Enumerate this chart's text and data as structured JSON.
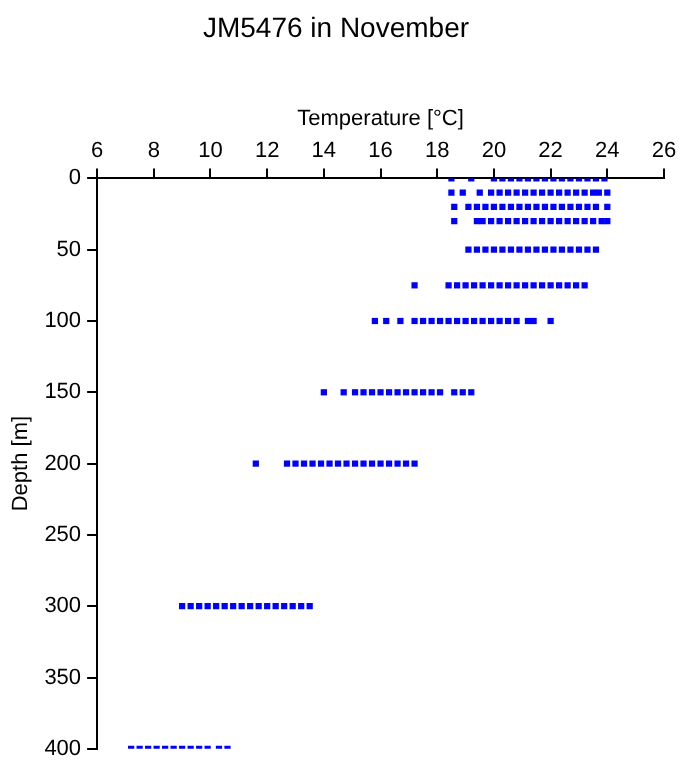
{
  "chart_data": {
    "type": "scatter",
    "title": "JM5476 in November",
    "xlabel": "Temperature [°C]",
    "ylabel": "Depth [m]",
    "xlim": [
      6,
      26
    ],
    "xticks": [
      6,
      8,
      10,
      12,
      14,
      16,
      18,
      20,
      22,
      24,
      26
    ],
    "ylim": [
      400,
      0
    ],
    "yticks": [
      0,
      50,
      100,
      150,
      200,
      250,
      300,
      350,
      400
    ],
    "grid": false,
    "legend": false,
    "marker": "square",
    "series": [
      {
        "color": "#0000ff",
        "x": [
          18.5,
          19.2,
          20.0,
          20.3,
          20.6,
          20.9,
          21.2,
          21.5,
          21.8,
          22.1,
          22.4,
          22.7,
          23.0,
          23.3,
          23.6,
          23.9
        ],
        "values": [
          0,
          0,
          0,
          0,
          0,
          0,
          0,
          0,
          0,
          0,
          0,
          0,
          0,
          0,
          0,
          0
        ]
      },
      {
        "color": "#0000ff",
        "x": [
          18.5,
          18.9,
          19.5,
          19.9,
          20.2,
          20.5,
          20.8,
          21.1,
          21.4,
          21.7,
          22.0,
          22.3,
          22.6,
          22.9,
          23.2,
          23.5,
          23.7,
          24.0
        ],
        "values": [
          10,
          10,
          10,
          10,
          10,
          10,
          10,
          10,
          10,
          10,
          10,
          10,
          10,
          10,
          10,
          10,
          10,
          10
        ]
      },
      {
        "color": "#0000ff",
        "x": [
          18.6,
          19.1,
          19.4,
          19.7,
          20.0,
          20.3,
          20.6,
          20.9,
          21.2,
          21.5,
          21.8,
          22.1,
          22.4,
          22.7,
          23.0,
          23.3,
          23.6,
          24.0
        ],
        "values": [
          20,
          20,
          20,
          20,
          20,
          20,
          20,
          20,
          20,
          20,
          20,
          20,
          20,
          20,
          20,
          20,
          20,
          20
        ]
      },
      {
        "color": "#0000ff",
        "x": [
          18.6,
          19.4,
          19.6,
          19.9,
          20.2,
          20.5,
          20.8,
          21.1,
          21.4,
          21.7,
          22.0,
          22.3,
          22.6,
          22.9,
          23.2,
          23.5,
          23.8,
          24.0
        ],
        "values": [
          30,
          30,
          30,
          30,
          30,
          30,
          30,
          30,
          30,
          30,
          30,
          30,
          30,
          30,
          30,
          30,
          30,
          30
        ]
      },
      {
        "color": "#0000ff",
        "x": [
          19.1,
          19.4,
          19.7,
          20.0,
          20.3,
          20.6,
          20.9,
          21.2,
          21.5,
          21.8,
          22.1,
          22.4,
          22.7,
          23.0,
          23.3,
          23.6
        ],
        "values": [
          50,
          50,
          50,
          50,
          50,
          50,
          50,
          50,
          50,
          50,
          50,
          50,
          50,
          50,
          50,
          50
        ]
      },
      {
        "color": "#0000ff",
        "x": [
          17.2,
          18.4,
          18.7,
          19.0,
          19.3,
          19.6,
          19.9,
          20.2,
          20.5,
          20.8,
          21.1,
          21.4,
          21.7,
          22.0,
          22.3,
          22.6,
          22.9,
          23.2
        ],
        "values": [
          75,
          75,
          75,
          75,
          75,
          75,
          75,
          75,
          75,
          75,
          75,
          75,
          75,
          75,
          75,
          75,
          75,
          75
        ]
      },
      {
        "color": "#0000ff",
        "x": [
          15.8,
          16.2,
          16.7,
          17.2,
          17.5,
          17.8,
          18.1,
          18.4,
          18.7,
          19.0,
          19.3,
          19.6,
          19.9,
          20.2,
          20.5,
          20.8,
          21.2,
          21.4,
          22.0
        ],
        "values": [
          100,
          100,
          100,
          100,
          100,
          100,
          100,
          100,
          100,
          100,
          100,
          100,
          100,
          100,
          100,
          100,
          100,
          100,
          100
        ]
      },
      {
        "color": "#0000ff",
        "x": [
          14.0,
          14.7,
          15.1,
          15.4,
          15.7,
          16.0,
          16.3,
          16.6,
          16.9,
          17.2,
          17.5,
          17.8,
          18.1,
          18.6,
          18.9,
          19.2
        ],
        "values": [
          150,
          150,
          150,
          150,
          150,
          150,
          150,
          150,
          150,
          150,
          150,
          150,
          150,
          150,
          150,
          150
        ]
      },
      {
        "color": "#0000ff",
        "x": [
          11.6,
          12.7,
          13.0,
          13.3,
          13.6,
          13.9,
          14.2,
          14.5,
          14.8,
          15.1,
          15.4,
          15.7,
          16.0,
          16.3,
          16.6,
          16.9,
          17.2
        ],
        "values": [
          200,
          200,
          200,
          200,
          200,
          200,
          200,
          200,
          200,
          200,
          200,
          200,
          200,
          200,
          200,
          200,
          200
        ]
      },
      {
        "color": "#0000ff",
        "x": [
          9.0,
          9.3,
          9.6,
          9.9,
          10.2,
          10.5,
          10.8,
          11.1,
          11.4,
          11.7,
          12.0,
          12.3,
          12.6,
          12.9,
          13.2,
          13.5
        ],
        "values": [
          300,
          300,
          300,
          300,
          300,
          300,
          300,
          300,
          300,
          300,
          300,
          300,
          300,
          300,
          300,
          300
        ]
      },
      {
        "color": "#0000ff",
        "x": [
          7.2,
          7.5,
          7.8,
          8.1,
          8.4,
          8.7,
          9.0,
          9.3,
          9.6,
          9.9,
          10.3,
          10.6
        ],
        "values": [
          400,
          400,
          400,
          400,
          400,
          400,
          400,
          400,
          400,
          400,
          400,
          400
        ]
      }
    ]
  }
}
